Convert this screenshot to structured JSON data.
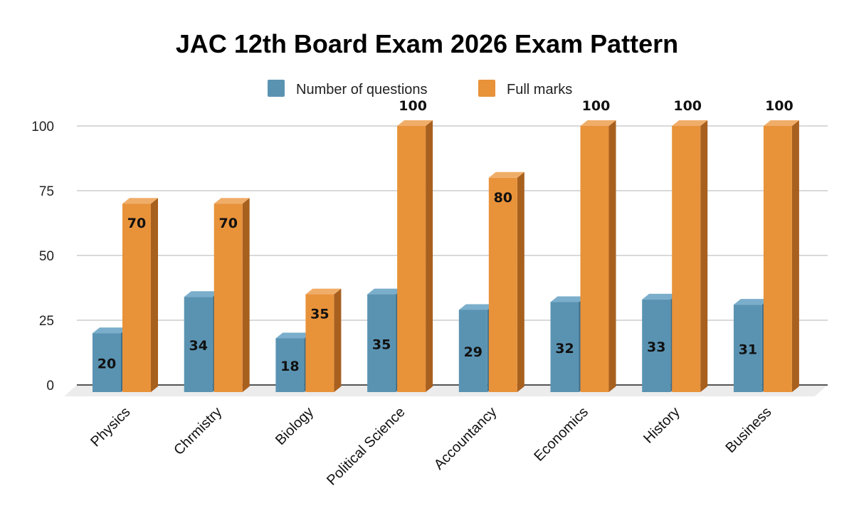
{
  "chart_data": {
    "type": "bar",
    "style": "3d-clustered-column",
    "title": "JAC 12th Board Exam 2026 Exam Pattern",
    "xlabel": "",
    "ylabel": "",
    "ylim": [
      0,
      100
    ],
    "yticks": [
      0,
      25,
      50,
      75,
      100
    ],
    "grid": true,
    "legend_position": "top",
    "categories": [
      "Physics",
      "Chrmistry",
      "Biology",
      "Political Science",
      "Accountancy",
      "Economics",
      "History",
      "Business"
    ],
    "series": [
      {
        "name": "Number of questions",
        "color": "#5a93b2",
        "values": [
          20,
          34,
          18,
          35,
          29,
          32,
          33,
          31
        ]
      },
      {
        "name": "Full marks",
        "color": "#e8923a",
        "values": [
          70,
          70,
          35,
          100,
          80,
          100,
          100,
          100
        ]
      }
    ]
  },
  "colors": {
    "blue_front": "#5a93b2",
    "blue_side": "#3f6e88",
    "blue_top": "#7aaecb",
    "orange_front": "#e8923a",
    "orange_side": "#a8601f",
    "orange_top": "#f0ad68",
    "grid": "#d9d9d9",
    "axis": "#555555",
    "floor": "#ececec"
  }
}
